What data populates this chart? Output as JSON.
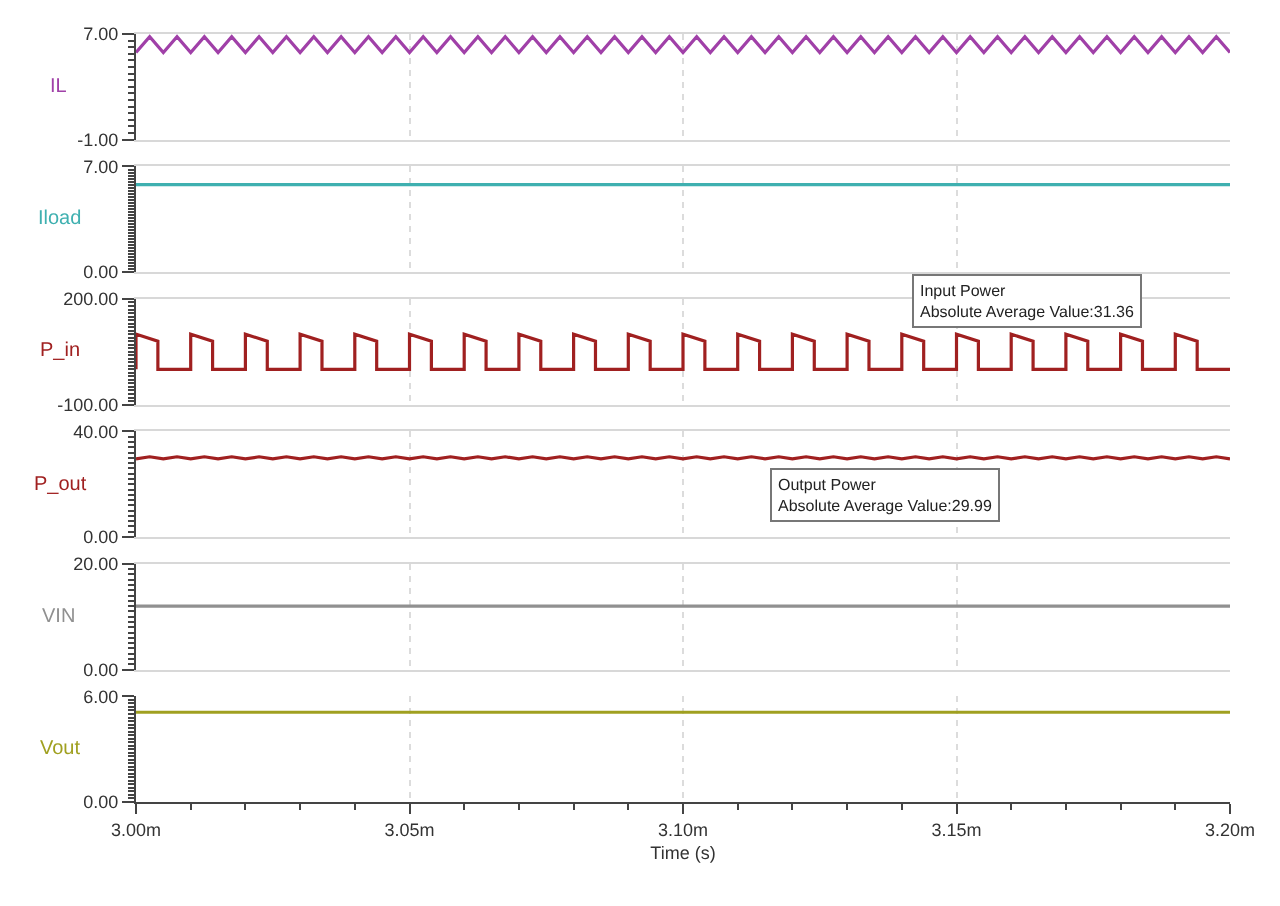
{
  "chart_data": [
    {
      "type": "line",
      "ylabel": "IL",
      "ylim": [
        -1,
        7
      ],
      "yticks": [
        {
          "value": 7,
          "label": "7.00"
        },
        {
          "value": -1,
          "label": "-1.00"
        }
      ],
      "xlim": [
        3.0,
        3.2
      ],
      "xticks": [
        {
          "value": 3.0,
          "label": null
        },
        {
          "value": 3.05,
          "label": null
        },
        {
          "value": 3.1,
          "label": null
        },
        {
          "value": 3.15,
          "label": null
        },
        {
          "value": 3.2,
          "label": null
        }
      ],
      "grid": "x",
      "tick_labels": "y",
      "x": [
        3.0,
        3.0025,
        3.005,
        3.0075,
        3.01,
        3.0125,
        3.015,
        3.0175,
        3.02,
        3.0225,
        3.025,
        3.0275,
        3.03,
        3.0325,
        3.035,
        3.0375,
        3.04,
        3.0425,
        3.045,
        3.0475,
        3.05,
        3.0525,
        3.055,
        3.0575,
        3.06,
        3.0625,
        3.065,
        3.0675,
        3.07,
        3.0725,
        3.075,
        3.0775,
        3.08,
        3.0825,
        3.085,
        3.0875,
        3.09,
        3.0925,
        3.095,
        3.0975,
        3.1,
        3.1025,
        3.105,
        3.1075,
        3.11,
        3.1125,
        3.115,
        3.1175,
        3.12,
        3.1225,
        3.125,
        3.1275,
        3.13,
        3.1325,
        3.135,
        3.1375,
        3.14,
        3.1425,
        3.145,
        3.1475,
        3.15,
        3.1525,
        3.155,
        3.1575,
        3.16,
        3.1625,
        3.165,
        3.1675,
        3.17,
        3.1725,
        3.175,
        3.1775,
        3.18,
        3.1825,
        3.185,
        3.1875,
        3.19,
        3.1925,
        3.195,
        3.1975,
        3.2
      ],
      "series": [
        {
          "color": "#a040a8",
          "values": [
            5.6,
            6.8,
            5.6,
            6.8,
            5.6,
            6.8,
            5.6,
            6.8,
            5.6,
            6.8,
            5.6,
            6.8,
            5.6,
            6.8,
            5.6,
            6.8,
            5.6,
            6.8,
            5.6,
            6.8,
            5.6,
            6.8,
            5.6,
            6.8,
            5.6,
            6.8,
            5.6,
            6.8,
            5.6,
            6.8,
            5.6,
            6.8,
            5.6,
            6.8,
            5.6,
            6.8,
            5.6,
            6.8,
            5.6,
            6.8,
            5.6,
            6.8,
            5.6,
            6.8,
            5.6,
            6.8,
            5.6,
            6.8,
            5.6,
            6.8,
            5.6,
            6.8,
            5.6,
            6.8,
            5.6,
            6.8,
            5.6,
            6.8,
            5.6,
            6.8,
            5.6,
            6.8,
            5.6,
            6.8,
            5.6,
            6.8,
            5.6,
            6.8,
            5.6,
            6.8,
            5.6,
            6.8,
            5.6,
            6.8,
            5.6,
            6.8,
            5.6,
            6.8,
            5.6,
            6.8,
            5.6
          ]
        }
      ]
    },
    {
      "type": "line",
      "ylabel": "Iload",
      "ylim": [
        0,
        7
      ],
      "yticks": [
        {
          "value": 7,
          "label": "7.00"
        },
        {
          "value": 0,
          "label": "0.00"
        }
      ],
      "xlim": [
        3.0,
        3.2
      ],
      "xticks": [
        {
          "value": 3.0,
          "label": null
        },
        {
          "value": 3.05,
          "label": null
        },
        {
          "value": 3.1,
          "label": null
        },
        {
          "value": 3.15,
          "label": null
        },
        {
          "value": 3.2,
          "label": null
        }
      ],
      "grid": "x",
      "tick_labels": "y",
      "x": [
        3.0,
        3.2
      ],
      "series": [
        {
          "color": "#3fb0b0",
          "values": [
            5.8,
            5.8
          ]
        }
      ]
    },
    {
      "type": "line",
      "ylabel": "P_in",
      "ylim": [
        -100,
        200
      ],
      "yticks": [
        {
          "value": 200,
          "label": "200.00"
        },
        {
          "value": -100,
          "label": "-100.00"
        }
      ],
      "xlim": [
        3.0,
        3.2
      ],
      "xticks": [
        {
          "value": 3.0,
          "label": null
        },
        {
          "value": 3.05,
          "label": null
        },
        {
          "value": 3.1,
          "label": null
        },
        {
          "value": 3.15,
          "label": null
        },
        {
          "value": 3.2,
          "label": null
        }
      ],
      "grid": "x",
      "tick_labels": "y",
      "annotations": [
        "Input Power\nAbsolute Average Value:31.36"
      ],
      "x": [
        3.0,
        3.0,
        3.004,
        3.004,
        3.01,
        3.01,
        3.014,
        3.014,
        3.02,
        3.02,
        3.024,
        3.024,
        3.03,
        3.03,
        3.034,
        3.034,
        3.04,
        3.04,
        3.044,
        3.044,
        3.05,
        3.05,
        3.054,
        3.054,
        3.06,
        3.06,
        3.064,
        3.064,
        3.07,
        3.07,
        3.074,
        3.074,
        3.08,
        3.08,
        3.084,
        3.084,
        3.09,
        3.09,
        3.094,
        3.094,
        3.1,
        3.1,
        3.104,
        3.104,
        3.11,
        3.11,
        3.114,
        3.114,
        3.12,
        3.12,
        3.124,
        3.124,
        3.13,
        3.13,
        3.134,
        3.134,
        3.14,
        3.14,
        3.144,
        3.144,
        3.15,
        3.15,
        3.154,
        3.154,
        3.16,
        3.16,
        3.164,
        3.164,
        3.17,
        3.17,
        3.174,
        3.174,
        3.18,
        3.18,
        3.184,
        3.184,
        3.19,
        3.19,
        3.194,
        3.194,
        3.2
      ],
      "series": [
        {
          "color": "#a02020",
          "values": [
            0,
            100,
            80,
            0,
            0,
            100,
            80,
            0,
            0,
            100,
            80,
            0,
            0,
            100,
            80,
            0,
            0,
            100,
            80,
            0,
            0,
            100,
            80,
            0,
            0,
            100,
            80,
            0,
            0,
            100,
            80,
            0,
            0,
            100,
            80,
            0,
            0,
            100,
            80,
            0,
            0,
            100,
            80,
            0,
            0,
            100,
            80,
            0,
            0,
            100,
            80,
            0,
            0,
            100,
            80,
            0,
            0,
            100,
            80,
            0,
            0,
            100,
            80,
            0,
            0,
            100,
            80,
            0,
            0,
            100,
            80,
            0,
            0,
            100,
            80,
            0,
            0,
            100,
            80,
            0,
            0
          ]
        }
      ]
    },
    {
      "type": "line",
      "ylabel": "P_out",
      "ylim": [
        0,
        40
      ],
      "yticks": [
        {
          "value": 40,
          "label": "40.00"
        },
        {
          "value": 0,
          "label": "0.00"
        }
      ],
      "xlim": [
        3.0,
        3.2
      ],
      "xticks": [
        {
          "value": 3.0,
          "label": null
        },
        {
          "value": 3.05,
          "label": null
        },
        {
          "value": 3.1,
          "label": null
        },
        {
          "value": 3.15,
          "label": null
        },
        {
          "value": 3.2,
          "label": null
        }
      ],
      "grid": "x",
      "tick_labels": "y",
      "annotations": [
        "Output Power\nAbsolute Average Value:29.99"
      ],
      "x": [
        3.0,
        3.0025,
        3.005,
        3.0075,
        3.01,
        3.0125,
        3.015,
        3.0175,
        3.02,
        3.0225,
        3.025,
        3.0275,
        3.03,
        3.0325,
        3.035,
        3.0375,
        3.04,
        3.0425,
        3.045,
        3.0475,
        3.05,
        3.0525,
        3.055,
        3.0575,
        3.06,
        3.0625,
        3.065,
        3.0675,
        3.07,
        3.0725,
        3.075,
        3.0775,
        3.08,
        3.0825,
        3.085,
        3.0875,
        3.09,
        3.0925,
        3.095,
        3.0975,
        3.1,
        3.1025,
        3.105,
        3.1075,
        3.11,
        3.1125,
        3.115,
        3.1175,
        3.12,
        3.1225,
        3.125,
        3.1275,
        3.13,
        3.1325,
        3.135,
        3.1375,
        3.14,
        3.1425,
        3.145,
        3.1475,
        3.15,
        3.1525,
        3.155,
        3.1575,
        3.16,
        3.1625,
        3.165,
        3.1675,
        3.17,
        3.1725,
        3.175,
        3.1775,
        3.18,
        3.1825,
        3.185,
        3.1875,
        3.19,
        3.1925,
        3.195,
        3.1975,
        3.2
      ],
      "series": [
        {
          "color": "#a02020",
          "values": [
            29.6,
            30.4,
            29.6,
            30.4,
            29.6,
            30.4,
            29.6,
            30.4,
            29.6,
            30.4,
            29.6,
            30.4,
            29.6,
            30.4,
            29.6,
            30.4,
            29.6,
            30.4,
            29.6,
            30.4,
            29.6,
            30.4,
            29.6,
            30.4,
            29.6,
            30.4,
            29.6,
            30.4,
            29.6,
            30.4,
            29.6,
            30.4,
            29.6,
            30.4,
            29.6,
            30.4,
            29.6,
            30.4,
            29.6,
            30.4,
            29.6,
            30.4,
            29.6,
            30.4,
            29.6,
            30.4,
            29.6,
            30.4,
            29.6,
            30.4,
            29.6,
            30.4,
            29.6,
            30.4,
            29.6,
            30.4,
            29.6,
            30.4,
            29.6,
            30.4,
            29.6,
            30.4,
            29.6,
            30.4,
            29.6,
            30.4,
            29.6,
            30.4,
            29.6,
            30.4,
            29.6,
            30.4,
            29.6,
            30.4,
            29.6,
            30.4,
            29.6,
            30.4,
            29.6,
            30.4,
            29.6
          ]
        }
      ]
    },
    {
      "type": "line",
      "ylabel": "VIN",
      "ylim": [
        0,
        20
      ],
      "yticks": [
        {
          "value": 20,
          "label": "20.00"
        },
        {
          "value": 0,
          "label": "0.00"
        }
      ],
      "xlim": [
        3.0,
        3.2
      ],
      "xticks": [
        {
          "value": 3.0,
          "label": null
        },
        {
          "value": 3.05,
          "label": null
        },
        {
          "value": 3.1,
          "label": null
        },
        {
          "value": 3.15,
          "label": null
        },
        {
          "value": 3.2,
          "label": null
        }
      ],
      "grid": "x",
      "tick_labels": "y",
      "x": [
        3.0,
        3.2
      ],
      "series": [
        {
          "color": "#909090",
          "values": [
            12,
            12
          ]
        }
      ]
    },
    {
      "type": "line",
      "ylabel": "Vout",
      "xlabel": "Time (s)",
      "ylim": [
        0,
        6
      ],
      "yticks": [
        {
          "value": 6,
          "label": "6.00"
        },
        {
          "value": 0,
          "label": "0.00"
        }
      ],
      "xlim": [
        3.0,
        3.2
      ],
      "xticks": [
        {
          "value": 3.0,
          "label": "3.00m"
        },
        {
          "value": 3.05,
          "label": "3.05m"
        },
        {
          "value": 3.1,
          "label": "3.10m"
        },
        {
          "value": 3.15,
          "label": "3.15m"
        },
        {
          "value": 3.2,
          "label": "3.20m"
        }
      ],
      "grid": "x",
      "x": [
        3.0,
        3.2
      ],
      "series": [
        {
          "color": "#a0a020",
          "values": [
            5.1,
            5.1
          ]
        }
      ]
    }
  ]
}
